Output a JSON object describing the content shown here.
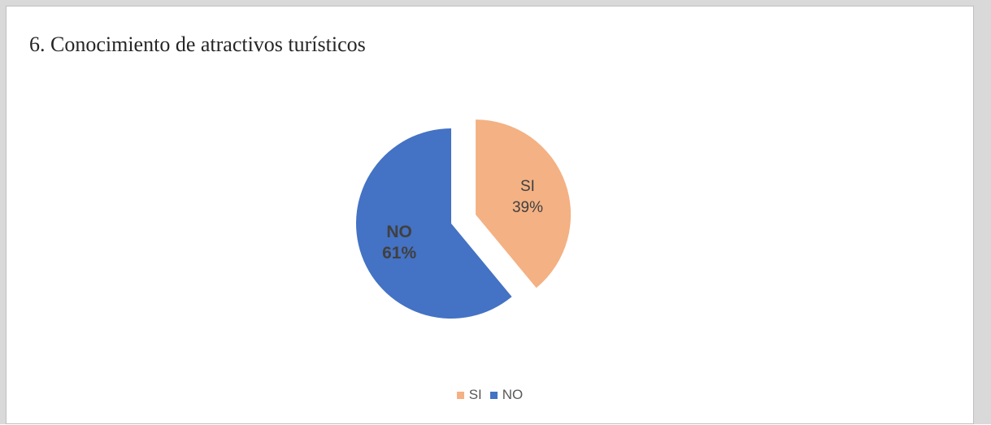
{
  "chart_data": {
    "type": "pie",
    "title": "6. Conocimiento de atractivos turísticos",
    "slices": [
      {
        "label": "SI",
        "value": 39,
        "percent_label": "39%",
        "color": "#f4b183",
        "exploded": true,
        "label_bold": false
      },
      {
        "label": "NO",
        "value": 61,
        "percent_label": "61%",
        "color": "#4472c4",
        "exploded": false,
        "label_bold": true
      }
    ],
    "legend": {
      "position": "bottom",
      "entries": [
        {
          "label": "SI",
          "color": "#f4b183"
        },
        {
          "label": "NO",
          "color": "#4472c4"
        }
      ]
    }
  }
}
